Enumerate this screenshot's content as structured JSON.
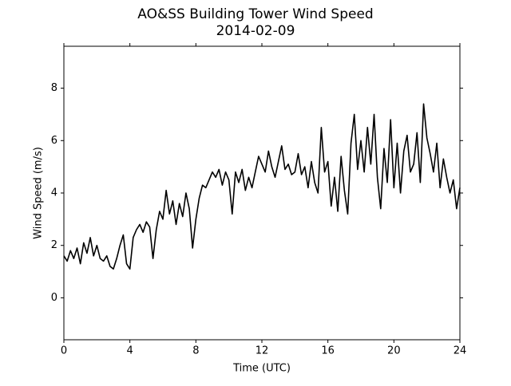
{
  "chart_data": {
    "type": "line",
    "title": "AO&SS Building Tower Wind Speed",
    "subtitle": "2014-02-09",
    "x_label": "Time (UTC)",
    "y_label": "Wind Speed (m/s)",
    "xlim": [
      0,
      24
    ],
    "xticks": [
      0,
      4,
      8,
      12,
      16,
      20,
      24
    ],
    "ylim": [
      -1.6,
      9.6
    ],
    "yticks": [
      0,
      2,
      4,
      6,
      8
    ],
    "x": [
      0,
      0.2,
      0.4,
      0.6,
      0.8,
      1,
      1.2,
      1.4,
      1.6,
      1.8,
      2,
      2.2,
      2.4,
      2.6,
      2.8,
      3,
      3.2,
      3.4,
      3.6,
      3.8,
      4,
      4.2,
      4.4,
      4.6,
      4.8,
      5,
      5.2,
      5.4,
      5.6,
      5.8,
      6,
      6.2,
      6.4,
      6.6,
      6.8,
      7,
      7.2,
      7.4,
      7.6,
      7.8,
      8,
      8.2,
      8.4,
      8.6,
      8.8,
      9,
      9.2,
      9.4,
      9.6,
      9.8,
      10,
      10.2,
      10.4,
      10.6,
      10.8,
      11,
      11.2,
      11.4,
      11.6,
      11.8,
      12,
      12.2,
      12.4,
      12.6,
      12.8,
      13,
      13.2,
      13.4,
      13.6,
      13.8,
      14,
      14.2,
      14.4,
      14.6,
      14.8,
      15,
      15.2,
      15.4,
      15.6,
      15.8,
      16,
      16.2,
      16.4,
      16.6,
      16.8,
      17,
      17.2,
      17.4,
      17.6,
      17.8,
      18,
      18.2,
      18.4,
      18.6,
      18.8,
      19,
      19.2,
      19.4,
      19.6,
      19.8,
      20,
      20.2,
      20.4,
      20.6,
      20.8,
      21,
      21.2,
      21.4,
      21.6,
      21.8,
      22,
      22.2,
      22.4,
      22.6,
      22.8,
      23,
      23.2,
      23.4,
      23.6,
      23.8,
      24
    ],
    "series": [
      {
        "color": "#000000",
        "values": [
          1.6,
          1.4,
          1.8,
          1.5,
          1.9,
          1.3,
          2.1,
          1.7,
          2.3,
          1.6,
          2.0,
          1.5,
          1.4,
          1.6,
          1.2,
          1.1,
          1.5,
          2.0,
          2.4,
          1.3,
          1.1,
          2.3,
          2.6,
          2.8,
          2.5,
          2.9,
          2.7,
          1.5,
          2.6,
          3.3,
          3.0,
          4.1,
          3.2,
          3.7,
          2.8,
          3.6,
          3.1,
          4.0,
          3.4,
          1.9,
          3.0,
          3.8,
          4.3,
          4.2,
          4.5,
          4.8,
          4.6,
          4.9,
          4.3,
          4.8,
          4.5,
          3.2,
          4.8,
          4.4,
          4.9,
          4.1,
          4.6,
          4.2,
          4.8,
          5.4,
          5.1,
          4.8,
          5.6,
          5.0,
          4.6,
          5.2,
          5.8,
          4.9,
          5.1,
          4.7,
          4.8,
          5.5,
          4.7,
          5.0,
          4.2,
          5.2,
          4.4,
          4.0,
          6.5,
          4.8,
          5.2,
          3.5,
          4.6,
          3.3,
          5.4,
          4.1,
          3.2,
          5.9,
          7.0,
          4.9,
          6.0,
          4.8,
          6.5,
          5.1,
          7.0,
          4.6,
          3.4,
          5.7,
          4.4,
          6.8,
          4.2,
          5.9,
          4.0,
          5.6,
          6.2,
          4.8,
          5.1,
          6.3,
          4.4,
          7.4,
          6.1,
          5.5,
          4.8,
          5.9,
          4.2,
          5.3,
          4.6,
          4.0,
          4.5,
          3.4,
          4.2
        ]
      }
    ]
  }
}
